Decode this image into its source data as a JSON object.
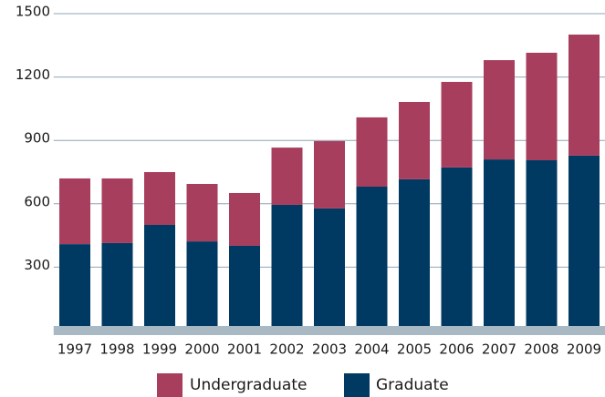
{
  "chart_data": {
    "type": "stacked_bar",
    "categories": [
      "1997",
      "1998",
      "1999",
      "2000",
      "2001",
      "2002",
      "2003",
      "2004",
      "2005",
      "2006",
      "2007",
      "2008",
      "2009"
    ],
    "series": [
      {
        "name": "Graduate",
        "color": "#003a63",
        "values": [
          409,
          414,
          500,
          422,
          401,
          595,
          578,
          681,
          716,
          772,
          810,
          806,
          828
        ]
      },
      {
        "name": "Undergraduate",
        "color": "#a83e5e",
        "values": [
          311,
          306,
          250,
          272,
          250,
          271,
          319,
          328,
          366,
          405,
          470,
          509,
          573
        ]
      }
    ],
    "ylim": [
      0,
      1500
    ],
    "yticks": [
      300,
      600,
      900,
      1200,
      1500
    ],
    "grid": true
  }
}
